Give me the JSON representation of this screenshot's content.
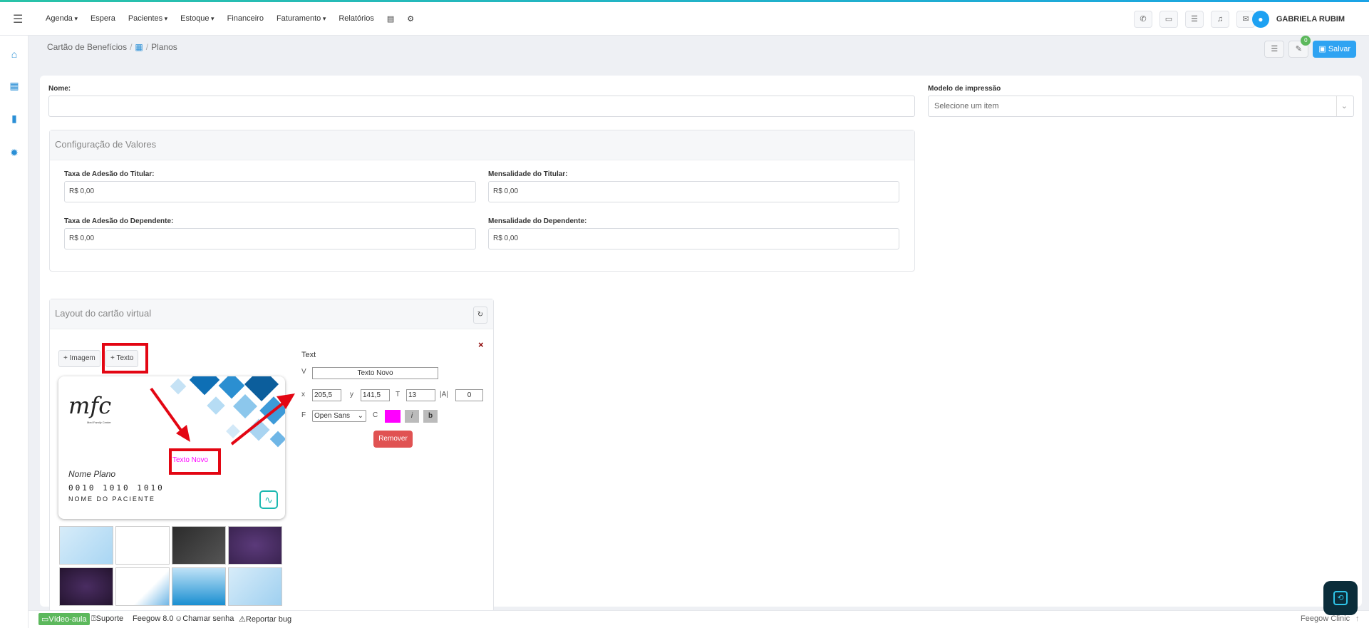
{
  "topnav": {
    "items": [
      "Agenda",
      "Espera",
      "Pacientes",
      "Estoque",
      "Financeiro",
      "Faturamento",
      "Relatórios"
    ],
    "user_name": "GABRIELA RUBIM"
  },
  "breadcrumb": {
    "root": "Cartão de Benefícios",
    "current": "Planos"
  },
  "toolbar": {
    "badge_count": "0",
    "save_label": "Salvar"
  },
  "form": {
    "name_label": "Nome:",
    "name_value": "",
    "print_model_label": "Modelo de impressão",
    "print_model_placeholder": "Selecione um item"
  },
  "values_section": {
    "title": "Configuração de Valores",
    "titular_fee_label": "Taxa de Adesão do Titular:",
    "titular_fee_value": "R$ 0,00",
    "titular_monthly_label": "Mensalidade do Titular:",
    "titular_monthly_value": "R$ 0,00",
    "dependent_fee_label": "Taxa de Adesão do Dependente:",
    "dependent_fee_value": "R$ 0,00",
    "dependent_monthly_label": "Mensalidade do Dependente:",
    "dependent_monthly_value": "R$ 0,00"
  },
  "layout_section": {
    "title": "Layout do cartão virtual",
    "add_image_label": "+ Imagem",
    "add_text_label": "+ Texto",
    "close_glyph": "×"
  },
  "card": {
    "logo_text": "mfc",
    "logo_sub": "Med Family Center",
    "new_text": "Texto Novo",
    "plan_name": "Nome Plano",
    "card_number": "0010 1010 1010",
    "patient_name": "NOME DO PACIENTE"
  },
  "text_editor": {
    "title": "Text",
    "v_label": "V",
    "v_value": "Texto Novo",
    "x_label": "x",
    "x_value": "205,5",
    "y_label": "y",
    "y_value": "141,5",
    "t_label": "T",
    "t_value": "13",
    "a_label": "|A|",
    "a_value": "0",
    "f_label": "F",
    "font_value": "Open Sans",
    "c_label": "C",
    "color_value": "#ff00ff",
    "italic_label": "i",
    "bold_label": "b",
    "remove_label": "Remover"
  },
  "footer": {
    "video_label": "Vídeo-aula",
    "support_label": "Suporte",
    "version_label": "Feegow 8.0",
    "call_label": "Chamar senha",
    "bug_label": "Reportar bug",
    "brand_label": "Feegow Clinic"
  },
  "colors": {
    "accent": "#2ea3f2",
    "danger": "#e05252",
    "highlight": "#e30613"
  }
}
